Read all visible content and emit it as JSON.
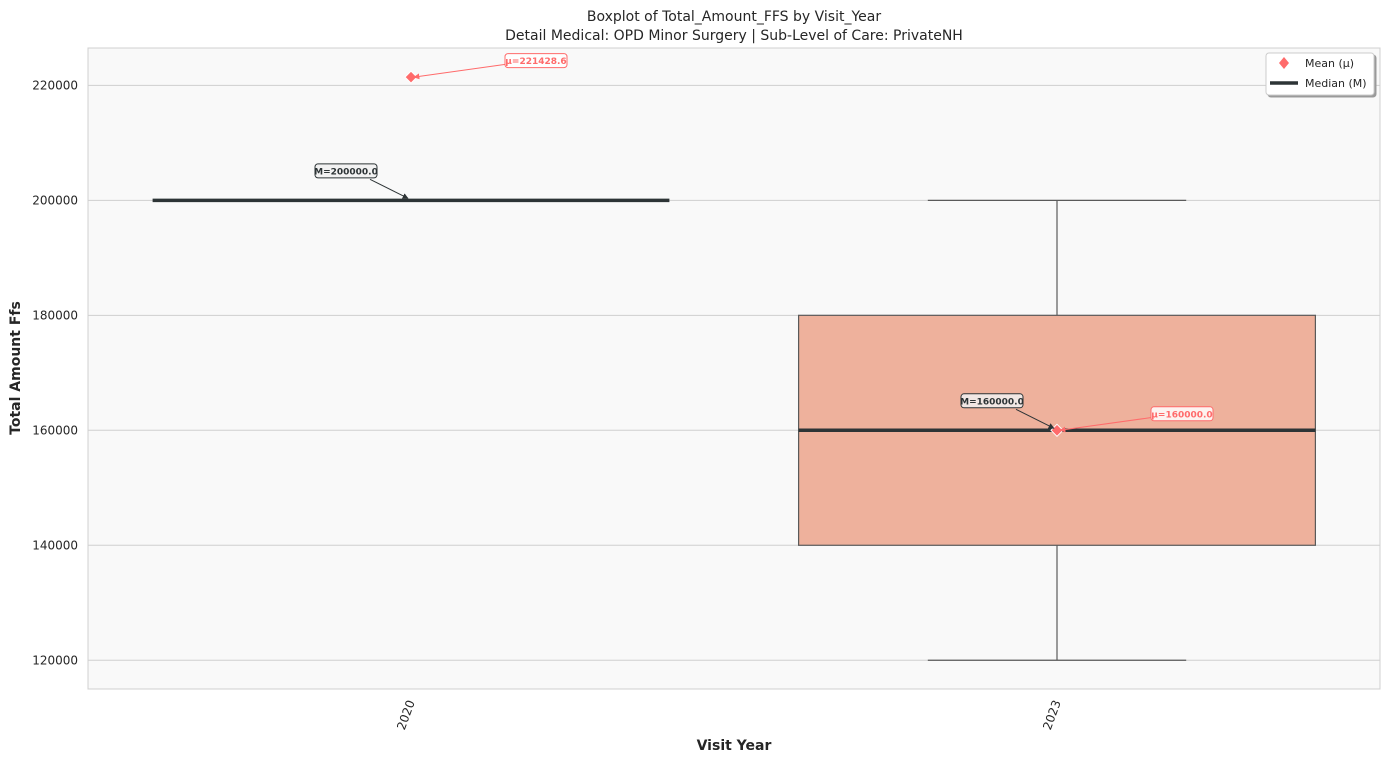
{
  "chart_data": {
    "type": "box",
    "title": "Boxplot of Total_Amount_FFS by Visit_Year",
    "subtitle": "Detail Medical: OPD Minor Surgery | Sub-Level of Care: PrivateNH",
    "xlabel": "Visit Year",
    "ylabel": "Total Amount Ffs",
    "ylim": [
      115000,
      226500
    ],
    "yticks": [
      120000,
      140000,
      160000,
      180000,
      200000,
      220000
    ],
    "ytick_labels": [
      "120000",
      "140000",
      "160000",
      "180000",
      "200000",
      "220000"
    ],
    "grid": true,
    "legend_position": "top-right",
    "categories": [
      "2020",
      "2023"
    ],
    "boxes": [
      {
        "category": "2020",
        "whisker_low": 200000,
        "q1": 200000,
        "median": 200000,
        "q3": 200000,
        "whisker_high": 200000,
        "mean": 221428.6,
        "median_label": "M=200000.0",
        "mean_label": "μ=221428.6"
      },
      {
        "category": "2023",
        "whisker_low": 120000,
        "q1": 140000,
        "median": 160000,
        "q3": 180000,
        "whisker_high": 200000,
        "mean": 160000.0,
        "median_label": "M=160000.0",
        "mean_label": "μ=160000.0"
      }
    ],
    "legend": [
      {
        "label": "Mean (μ)",
        "marker": "diamond"
      },
      {
        "label": "Median (M)",
        "marker": "line"
      }
    ],
    "colors": {
      "box_fill": "#EEB19C",
      "box_edge": "#5a5a5a",
      "median": "#2d3436",
      "mean": "#ff6b6b",
      "plot_bg": "#f9f9f9",
      "grid": "#cfcfcf"
    }
  }
}
